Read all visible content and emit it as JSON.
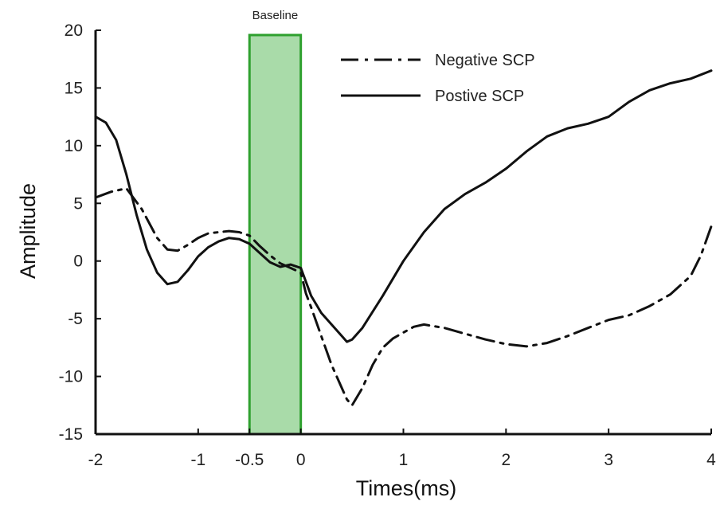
{
  "chart_data": {
    "type": "line",
    "xlabel": "Times(ms)",
    "ylabel": "Amplitude",
    "xlim": [
      -2,
      4
    ],
    "ylim": [
      -15,
      20
    ],
    "xticks": [
      -2,
      -1,
      -0.5,
      0,
      1,
      2,
      3,
      4
    ],
    "xtick_labels": [
      "-2",
      "-1",
      "-0.5",
      "0",
      "1",
      "2",
      "3",
      "4"
    ],
    "yticks": [
      20,
      15,
      10,
      5,
      0,
      -5,
      -10,
      -15
    ],
    "ytick_labels": [
      "20",
      "15",
      "10",
      "5",
      "0",
      "-5",
      "-10",
      "-15"
    ],
    "grid": false,
    "legend_position": "top-right",
    "baseline_region": {
      "label": "Baseline",
      "x": [
        -0.5,
        0
      ],
      "color": "#2ea02e",
      "fill": "#a9dba9"
    },
    "series": [
      {
        "name": "Negative SCP",
        "style": "dash-dot",
        "color": "#111111",
        "x": [
          -2,
          -1.85,
          -1.7,
          -1.55,
          -1.4,
          -1.3,
          -1.2,
          -1.1,
          -1.0,
          -0.9,
          -0.8,
          -0.7,
          -0.6,
          -0.5,
          -0.4,
          -0.3,
          -0.2,
          -0.1,
          0,
          0.05,
          0.1,
          0.2,
          0.3,
          0.4,
          0.45,
          0.5,
          0.6,
          0.7,
          0.8,
          0.9,
          1.0,
          1.1,
          1.2,
          1.4,
          1.6,
          1.8,
          2.0,
          2.2,
          2.4,
          2.6,
          2.8,
          3.0,
          3.2,
          3.4,
          3.6,
          3.8,
          3.9,
          4.0
        ],
        "y": [
          5.5,
          6.0,
          6.3,
          4.5,
          2.0,
          1.0,
          0.9,
          1.4,
          2.0,
          2.4,
          2.5,
          2.6,
          2.5,
          2.2,
          1.3,
          0.5,
          -0.2,
          -0.6,
          -1.0,
          -2.8,
          -4.0,
          -6.5,
          -9.0,
          -11.0,
          -12.0,
          -12.5,
          -11.0,
          -9.0,
          -7.5,
          -6.7,
          -6.2,
          -5.7,
          -5.5,
          -5.8,
          -6.3,
          -6.8,
          -7.2,
          -7.4,
          -7.1,
          -6.5,
          -5.8,
          -5.1,
          -4.7,
          -3.9,
          -2.9,
          -1.3,
          0.5,
          3.0
        ]
      },
      {
        "name": "Postive SCP",
        "style": "solid",
        "color": "#111111",
        "x": [
          -2,
          -1.9,
          -1.8,
          -1.7,
          -1.6,
          -1.5,
          -1.4,
          -1.3,
          -1.2,
          -1.1,
          -1.0,
          -0.9,
          -0.8,
          -0.7,
          -0.6,
          -0.5,
          -0.4,
          -0.3,
          -0.2,
          -0.1,
          0,
          0.1,
          0.2,
          0.3,
          0.4,
          0.45,
          0.5,
          0.6,
          0.8,
          1.0,
          1.2,
          1.4,
          1.6,
          1.8,
          2.0,
          2.2,
          2.4,
          2.6,
          2.8,
          3.0,
          3.2,
          3.4,
          3.6,
          3.8,
          4.0
        ],
        "y": [
          12.5,
          12.0,
          10.5,
          7.5,
          4.0,
          1.0,
          -1.0,
          -2.0,
          -1.8,
          -0.8,
          0.4,
          1.2,
          1.7,
          2.0,
          1.9,
          1.5,
          0.7,
          -0.1,
          -0.5,
          -0.3,
          -0.6,
          -3.0,
          -4.5,
          -5.5,
          -6.5,
          -7.0,
          -6.8,
          -5.8,
          -3.0,
          0.0,
          2.5,
          4.5,
          5.8,
          6.8,
          8.0,
          9.5,
          10.8,
          11.5,
          11.9,
          12.5,
          13.8,
          14.8,
          15.4,
          15.8,
          16.5
        ]
      }
    ]
  }
}
